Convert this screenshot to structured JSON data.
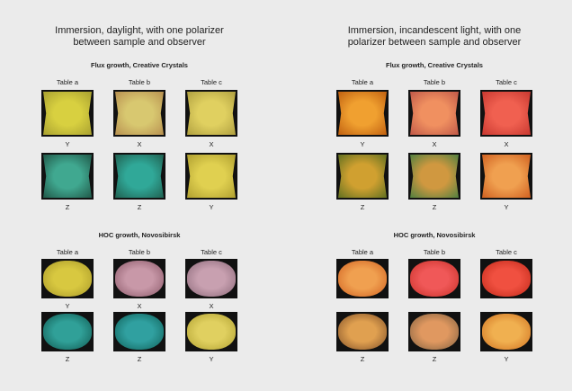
{
  "panels": [
    {
      "title": "Immersion, daylight, with one polarizer between sample and observer",
      "sections": [
        {
          "heading": "Flux growth, Creative Crystals",
          "columns": [
            "Table a",
            "Table b",
            "Table c"
          ],
          "rows": [
            {
              "labels": [
                "Y",
                "X",
                "X"
              ]
            },
            {
              "labels": [
                "Z",
                "Z",
                "Y"
              ]
            }
          ]
        },
        {
          "heading": "HOC growth, Novosibirsk",
          "columns": [
            "Table a",
            "Table b",
            "Table c"
          ],
          "rows": [
            {
              "labels": [
                "Y",
                "X",
                "X"
              ]
            },
            {
              "labels": [
                "Z",
                "Z",
                "Y"
              ]
            }
          ]
        }
      ]
    },
    {
      "title": "Immersion, incandescent light, with one polarizer between sample and observer",
      "sections": [
        {
          "heading": "Flux growth, Creative Crystals",
          "columns": [
            "Table a",
            "Table b",
            "Table c"
          ],
          "rows": [
            {
              "labels": [
                "Y",
                "X",
                "X"
              ]
            },
            {
              "labels": [
                "Z",
                "Z",
                "Y"
              ]
            }
          ]
        },
        {
          "heading": "HOC growth, Novosibirsk",
          "columns": [
            "Table a",
            "Table b",
            "Table c"
          ],
          "rows": [
            {},
            {
              "labels": [
                "Z",
                "Z",
                "Y"
              ]
            }
          ]
        }
      ]
    }
  ]
}
